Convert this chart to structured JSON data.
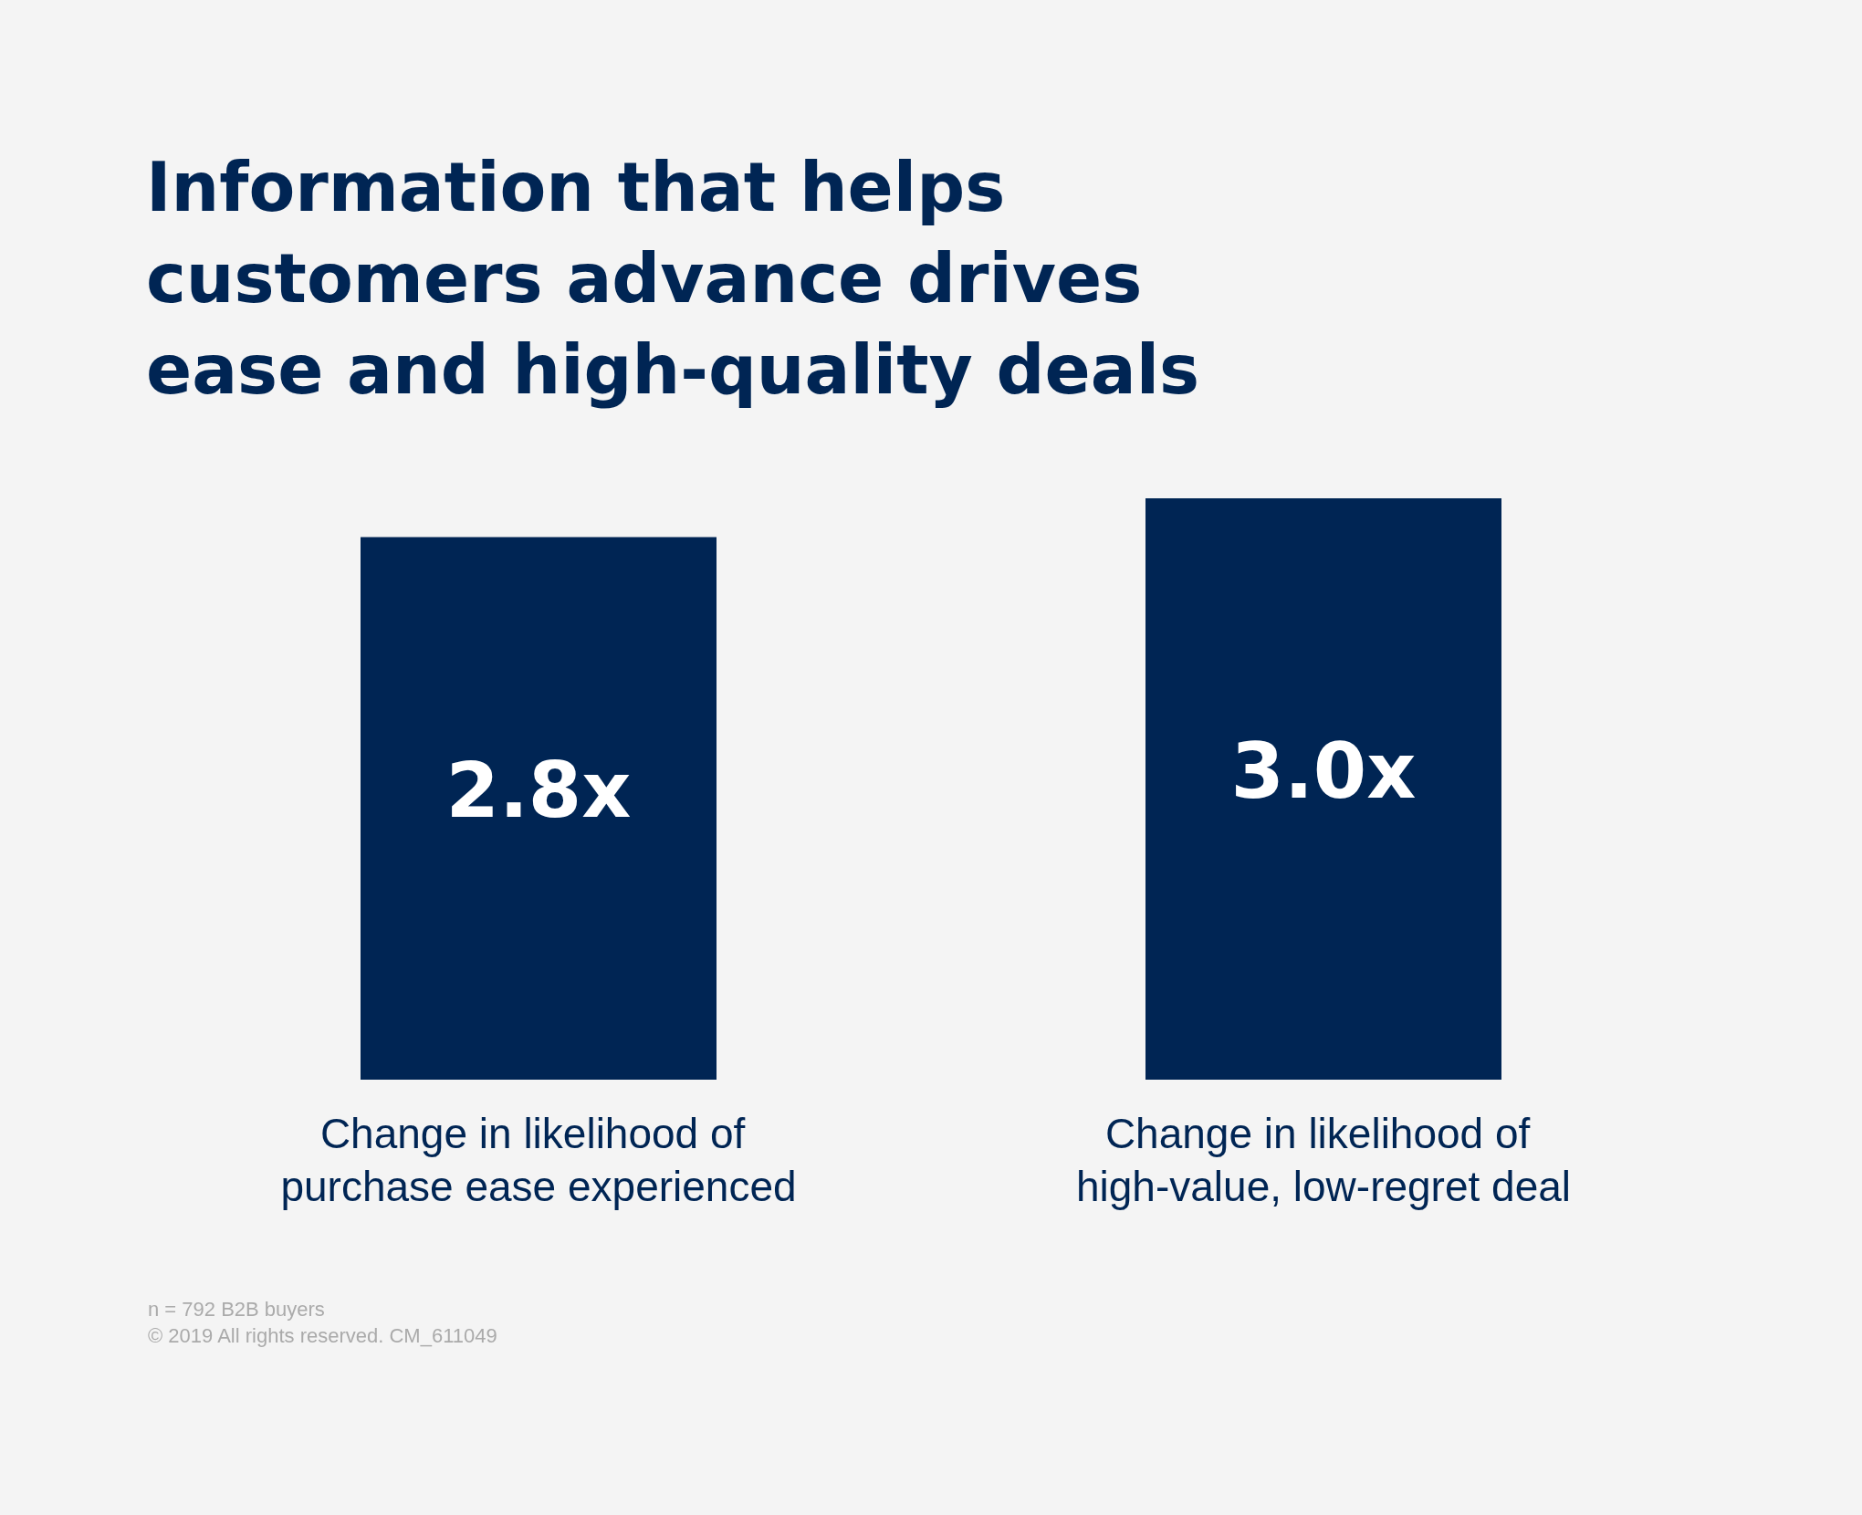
{
  "chart_data": {
    "type": "bar",
    "title": "Information that helps customers advance drives ease and high-quality deals",
    "categories": [
      "Change in likelihood of purchase ease experienced",
      "Change in likelihood of high-value, low-regret deal"
    ],
    "values": [
      2.8,
      3.0
    ],
    "color": "#002554",
    "value_labels": [
      "2.8x",
      "3.0x"
    ],
    "annotations": [
      "n = 792 B2B buyers",
      "© 2019 All rights reserved. CM_611049"
    ]
  }
}
